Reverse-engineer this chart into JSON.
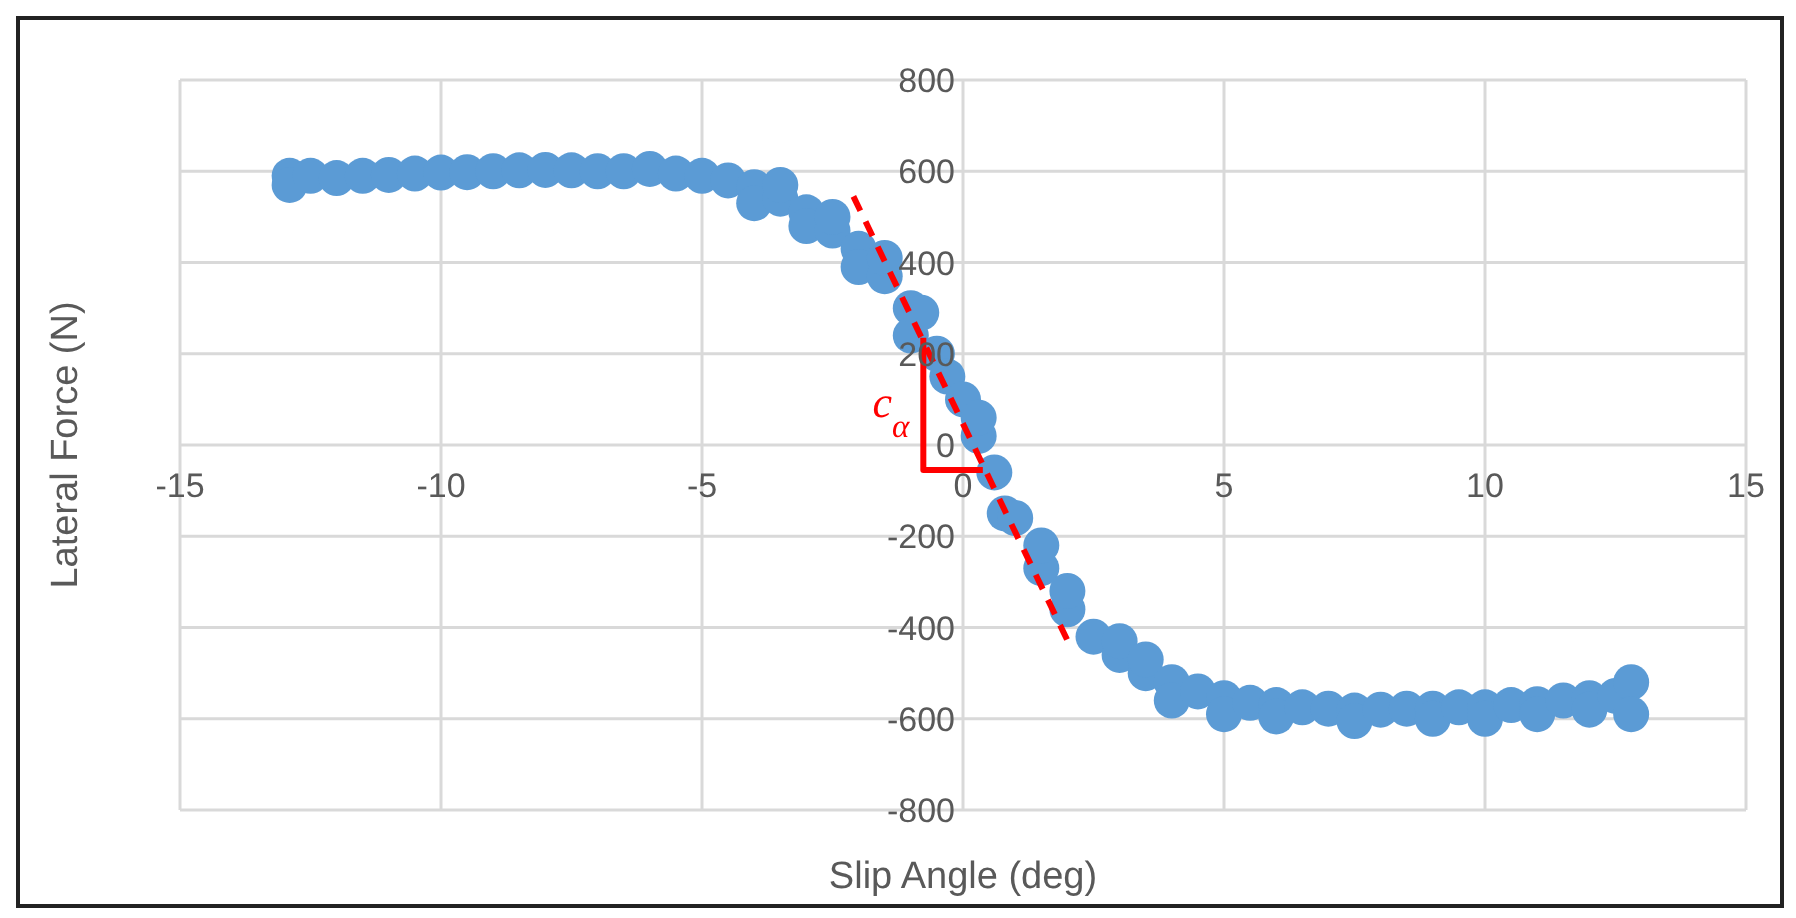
{
  "chart_data": {
    "type": "scatter",
    "xlabel": "Slip Angle (deg)",
    "ylabel": "Lateral Force (N)",
    "xlim": [
      -15,
      15
    ],
    "xticks": [
      -15,
      -10,
      -5,
      0,
      5,
      10,
      15
    ],
    "ylim": [
      -800,
      800
    ],
    "yticks": [
      -800,
      -600,
      -400,
      -200,
      0,
      200,
      400,
      600,
      800
    ],
    "grid": true,
    "annotations": [
      "c$_{α}$"
    ],
    "series": [
      {
        "marker": "circle",
        "color": "#5b9bd5",
        "x": [
          -12.9,
          -12.9,
          -12.5,
          -12,
          -11.5,
          -11,
          -10.5,
          -10,
          -9.5,
          -9,
          -8.5,
          -8,
          -7.5,
          -7,
          -6.5,
          -6,
          -5.5,
          -5,
          -4.5,
          -4,
          -4,
          -3.5,
          -3.5,
          -3,
          -3,
          -2.5,
          -2.5,
          -2,
          -2,
          -1.5,
          -1.5,
          -1,
          -1,
          -0.8,
          -0.5,
          -0.3,
          0,
          0.3,
          0.3,
          0.6,
          0.8,
          1,
          1.5,
          1.5,
          2,
          2,
          2.5,
          3,
          3,
          3.5,
          3.5,
          4,
          4,
          4.5,
          5,
          5,
          5.5,
          6,
          6,
          6.5,
          7,
          7.5,
          7.5,
          8,
          8.5,
          9,
          9,
          9.5,
          10,
          10,
          10.5,
          11,
          11,
          11.5,
          12,
          12,
          12.5,
          12.8,
          12.8
        ],
        "values": [
          590,
          570,
          590,
          585,
          590,
          592,
          595,
          597,
          598,
          600,
          602,
          603,
          602,
          600,
          600,
          605,
          595,
          590,
          580,
          565,
          530,
          540,
          570,
          510,
          480,
          470,
          500,
          430,
          390,
          370,
          410,
          300,
          240,
          290,
          200,
          150,
          100,
          20,
          60,
          -60,
          -150,
          -160,
          -270,
          -220,
          -360,
          -320,
          -420,
          -460,
          -430,
          -500,
          -470,
          -520,
          -560,
          -540,
          -555,
          -590,
          -565,
          -570,
          -595,
          -575,
          -578,
          -582,
          -605,
          -580,
          -578,
          -578,
          -600,
          -575,
          -575,
          -600,
          -570,
          -568,
          -590,
          -560,
          -555,
          -580,
          -550,
          -520,
          -590
        ]
      },
      {
        "type": "line",
        "color": "#ff0000",
        "line_style": "dashed",
        "marker": "none",
        "x": [
          -2.1,
          2.05
        ],
        "values": [
          545,
          -440
        ]
      },
      {
        "type": "line",
        "color": "#ff0000",
        "line_style": "solid",
        "marker": "none",
        "x": [
          -0.76,
          -0.76,
          0.38
        ],
        "values": [
          235,
          -55,
          -55
        ]
      }
    ]
  }
}
